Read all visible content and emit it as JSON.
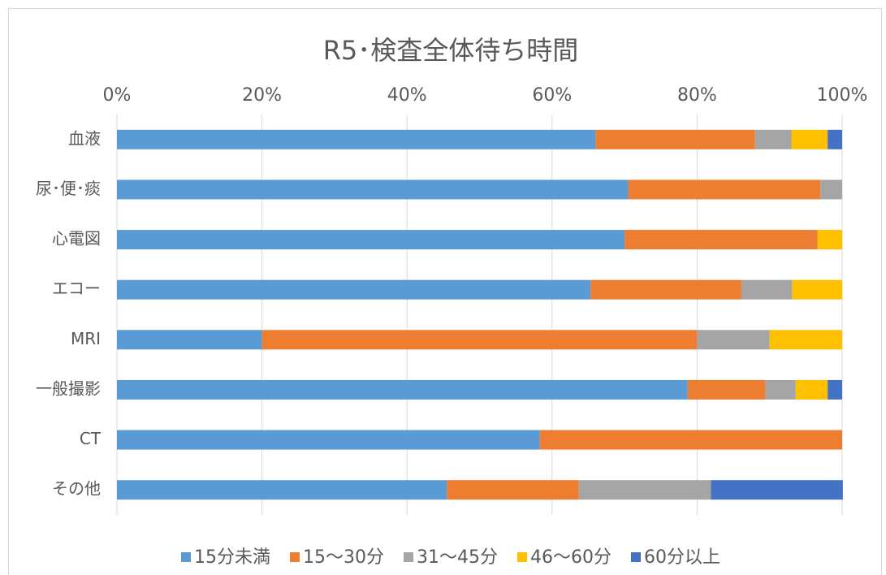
{
  "chart_data": {
    "type": "stacked_barh",
    "title": "R5･検査全体待ち時間",
    "categories": [
      "血液",
      "尿･便･痰",
      "心電図",
      "エコー",
      "MRI",
      "一般撮影",
      "CT",
      "その他"
    ],
    "series": [
      {
        "name": "15分未満",
        "color": "#5b9bd5",
        "values": [
          66,
          70.5,
          70,
          65.3,
          20,
          78.7,
          58.3,
          45.5
        ]
      },
      {
        "name": "15～30分",
        "color": "#ed7d31",
        "values": [
          22,
          26.5,
          26.6,
          20.8,
          60,
          10.7,
          41.7,
          18.2
        ]
      },
      {
        "name": "31～45分",
        "color": "#a5a5a5",
        "values": [
          5,
          3,
          0,
          7,
          10,
          4.2,
          0,
          18.2
        ]
      },
      {
        "name": "46～60分",
        "color": "#ffc000",
        "values": [
          5,
          0,
          3.4,
          6.9,
          10,
          4.4,
          0,
          0
        ]
      },
      {
        "name": "60分以上",
        "color": "#4472c4",
        "values": [
          2,
          0,
          0,
          0,
          0,
          2,
          0,
          18.2
        ]
      }
    ],
    "xlim": [
      0,
      100
    ],
    "xticks": [
      {
        "value": 0,
        "label": "0%"
      },
      {
        "value": 20,
        "label": "20%"
      },
      {
        "value": 40,
        "label": "40%"
      },
      {
        "value": 60,
        "label": "60%"
      },
      {
        "value": 80,
        "label": "80%"
      },
      {
        "value": 100,
        "label": "100%"
      }
    ],
    "grid": true,
    "legend": "bottom"
  }
}
